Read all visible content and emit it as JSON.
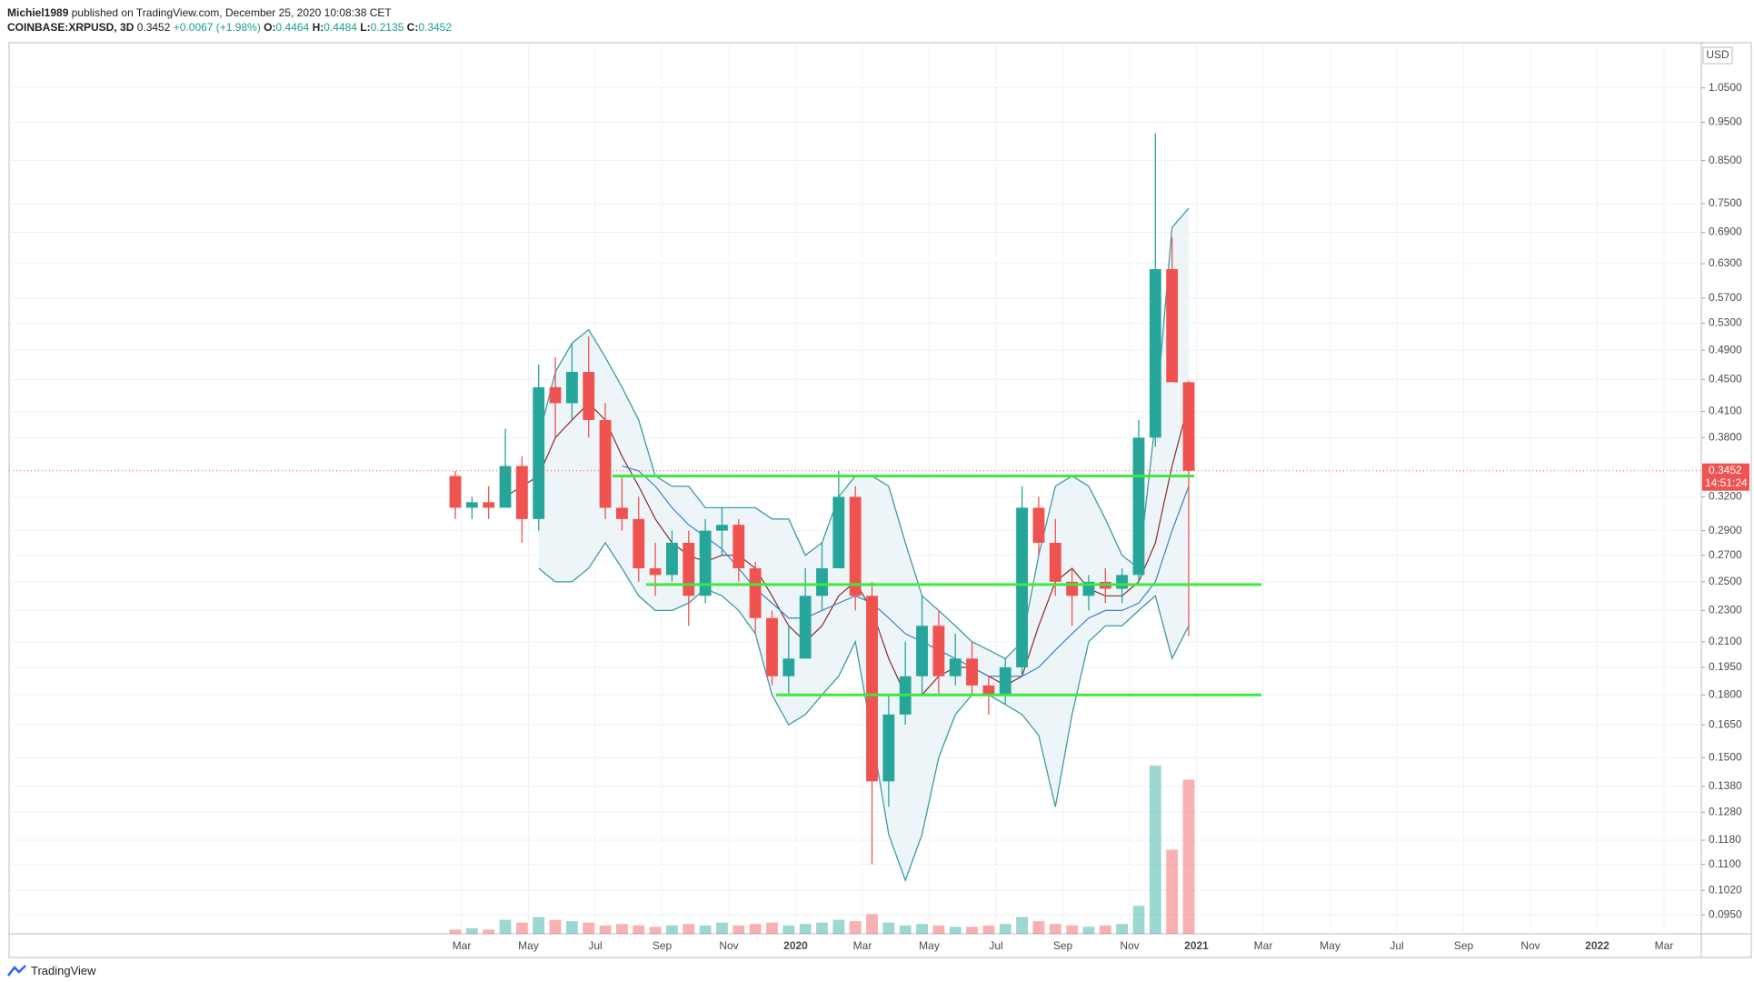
{
  "header": {
    "publisher": "Michiel1989",
    "published": "published on TradingView.com, December 25, 2020 10:08:38 CET",
    "symbol": "COINBASE:XRPUSD, 3D",
    "last": "0.3452",
    "change": "+0.0067 (+1.98%)",
    "ohlc": [
      {
        "label": "O:",
        "value": "0.4464"
      },
      {
        "label": "H:",
        "value": "0.4484"
      },
      {
        "label": "L:",
        "value": "0.2135"
      },
      {
        "label": "C:",
        "value": "0.3452"
      }
    ]
  },
  "logo": "TradingView",
  "chart_data": {
    "type": "candlestick",
    "log_scale": true,
    "grid": true,
    "currency": "USD",
    "ylim": [
      0.0899,
      1.197
    ],
    "yticks": [
      {
        "value": 1.05,
        "label": "1.0500"
      },
      {
        "value": 0.95,
        "label": "0.9500"
      },
      {
        "value": 0.85,
        "label": "0.8500"
      },
      {
        "value": 0.75,
        "label": "0.7500"
      },
      {
        "value": 0.69,
        "label": "0.6900"
      },
      {
        "value": 0.63,
        "label": "0.6300"
      },
      {
        "value": 0.57,
        "label": "0.5700"
      },
      {
        "value": 0.53,
        "label": "0.5300"
      },
      {
        "value": 0.49,
        "label": "0.4900"
      },
      {
        "value": 0.45,
        "label": "0.4500"
      },
      {
        "value": 0.41,
        "label": "0.4100"
      },
      {
        "value": 0.38,
        "label": "0.3800"
      },
      {
        "value": 0.32,
        "label": "0.3200"
      },
      {
        "value": 0.29,
        "label": "0.2900"
      },
      {
        "value": 0.27,
        "label": "0.2700"
      },
      {
        "value": 0.25,
        "label": "0.2500"
      },
      {
        "value": 0.23,
        "label": "0.2300"
      },
      {
        "value": 0.21,
        "label": "0.2100"
      },
      {
        "value": 0.195,
        "label": "0.1950"
      },
      {
        "value": 0.18,
        "label": "0.1800"
      },
      {
        "value": 0.165,
        "label": "0.1650"
      },
      {
        "value": 0.15,
        "label": "0.1500"
      },
      {
        "value": 0.138,
        "label": "0.1380"
      },
      {
        "value": 0.128,
        "label": "0.1280"
      },
      {
        "value": 0.118,
        "label": "0.1180"
      },
      {
        "value": 0.11,
        "label": "0.1100"
      },
      {
        "value": 0.102,
        "label": "0.1020"
      },
      {
        "value": 0.095,
        "label": "0.0950"
      }
    ],
    "xticks": [
      "Mar",
      "May",
      "Jul",
      "Sep",
      "Nov",
      "2020",
      "Mar",
      "May",
      "Jul",
      "Sep",
      "Nov",
      "2021",
      "Mar",
      "May",
      "Jul",
      "Sep",
      "Nov",
      "2022",
      "Mar"
    ],
    "up_color": "#26a69a",
    "down_color": "#ef5350",
    "open": [
      0.34,
      0.31,
      0.315,
      0.31,
      0.35,
      0.3,
      0.44,
      0.42,
      0.46,
      0.4,
      0.31,
      0.3,
      0.26,
      0.255,
      0.28,
      0.24,
      0.29,
      0.295,
      0.26,
      0.225,
      0.19,
      0.2,
      0.24,
      0.26,
      0.32,
      0.24,
      0.14,
      0.17,
      0.19,
      0.22,
      0.19,
      0.2,
      0.185,
      0.18,
      0.195,
      0.31,
      0.28,
      0.25,
      0.24,
      0.25,
      0.245,
      0.255,
      0.38,
      0.62,
      0.4464
    ],
    "high": [
      0.345,
      0.32,
      0.33,
      0.39,
      0.36,
      0.47,
      0.48,
      0.5,
      0.51,
      0.42,
      0.34,
      0.32,
      0.28,
      0.29,
      0.29,
      0.3,
      0.31,
      0.3,
      0.265,
      0.23,
      0.22,
      0.26,
      0.28,
      0.345,
      0.33,
      0.25,
      0.18,
      0.21,
      0.24,
      0.23,
      0.215,
      0.21,
      0.19,
      0.2,
      0.33,
      0.32,
      0.3,
      0.26,
      0.255,
      0.26,
      0.26,
      0.4,
      0.92,
      0.68,
      0.4484
    ],
    "low": [
      0.3,
      0.3,
      0.3,
      0.31,
      0.28,
      0.29,
      0.38,
      0.4,
      0.38,
      0.3,
      0.29,
      0.25,
      0.24,
      0.25,
      0.22,
      0.235,
      0.27,
      0.25,
      0.215,
      0.185,
      0.18,
      0.2,
      0.23,
      0.26,
      0.23,
      0.11,
      0.13,
      0.165,
      0.18,
      0.18,
      0.185,
      0.18,
      0.17,
      0.175,
      0.19,
      0.27,
      0.24,
      0.22,
      0.23,
      0.235,
      0.235,
      0.25,
      0.37,
      0.45,
      0.2135
    ],
    "close": [
      0.31,
      0.315,
      0.31,
      0.35,
      0.3,
      0.44,
      0.42,
      0.46,
      0.4,
      0.31,
      0.3,
      0.26,
      0.255,
      0.28,
      0.24,
      0.29,
      0.295,
      0.26,
      0.225,
      0.19,
      0.2,
      0.24,
      0.26,
      0.32,
      0.24,
      0.14,
      0.17,
      0.19,
      0.22,
      0.19,
      0.2,
      0.185,
      0.18,
      0.195,
      0.31,
      0.28,
      0.25,
      0.24,
      0.25,
      0.245,
      0.255,
      0.38,
      0.62,
      0.4464,
      0.3452
    ],
    "volume": [
      3,
      4,
      3,
      10,
      8,
      12,
      10,
      9,
      8,
      6,
      7,
      6,
      5,
      6,
      7,
      6,
      8,
      6,
      7,
      8,
      6,
      7,
      8,
      10,
      9,
      14,
      8,
      6,
      7,
      6,
      5,
      5,
      6,
      7,
      12,
      9,
      7,
      6,
      5,
      6,
      7,
      20,
      120,
      60,
      110
    ],
    "bands": {
      "color": "#3f9aa0",
      "fill": "#e9f3f6",
      "upper": [
        null,
        null,
        null,
        null,
        null,
        0.38,
        0.46,
        0.5,
        0.52,
        0.48,
        0.44,
        0.4,
        0.34,
        0.33,
        0.33,
        0.31,
        0.31,
        0.31,
        0.31,
        0.3,
        0.3,
        0.27,
        0.28,
        0.32,
        0.34,
        0.34,
        0.33,
        0.28,
        0.24,
        0.23,
        0.22,
        0.21,
        0.205,
        0.2,
        0.21,
        0.27,
        0.33,
        0.34,
        0.33,
        0.3,
        0.27,
        0.26,
        0.4,
        0.7,
        0.74
      ],
      "lower": [
        null,
        null,
        null,
        null,
        null,
        0.26,
        0.25,
        0.25,
        0.26,
        0.28,
        0.26,
        0.24,
        0.23,
        0.23,
        0.235,
        0.245,
        0.24,
        0.23,
        0.215,
        0.18,
        0.165,
        0.17,
        0.18,
        0.19,
        0.21,
        0.16,
        0.12,
        0.105,
        0.12,
        0.15,
        0.17,
        0.18,
        0.18,
        0.175,
        0.17,
        0.16,
        0.13,
        0.17,
        0.21,
        0.22,
        0.22,
        0.23,
        0.24,
        0.2,
        0.22
      ]
    },
    "series": [
      {
        "color": "#8b2a2a",
        "values": [
          null,
          null,
          null,
          0.32,
          0.33,
          0.34,
          0.38,
          0.4,
          0.42,
          0.4,
          0.36,
          0.33,
          0.3,
          0.28,
          0.27,
          0.265,
          0.27,
          0.27,
          0.26,
          0.24,
          0.22,
          0.21,
          0.22,
          0.24,
          0.25,
          0.23,
          0.2,
          0.18,
          0.18,
          0.19,
          0.195,
          0.195,
          0.19,
          0.185,
          0.19,
          0.22,
          0.25,
          0.26,
          0.245,
          0.24,
          0.24,
          0.25,
          0.28,
          0.35,
          0.42
        ]
      },
      {
        "color": "#3b82c4",
        "values": [
          null,
          null,
          null,
          null,
          null,
          null,
          null,
          null,
          null,
          null,
          0.35,
          0.345,
          0.33,
          0.31,
          0.295,
          0.285,
          0.275,
          0.26,
          0.245,
          0.235,
          0.225,
          0.225,
          0.23,
          0.235,
          0.24,
          0.235,
          0.225,
          0.215,
          0.21,
          0.205,
          0.2,
          0.195,
          0.19,
          0.19,
          0.19,
          0.195,
          0.205,
          0.215,
          0.225,
          0.23,
          0.23,
          0.235,
          0.25,
          0.29,
          0.33
        ]
      }
    ],
    "horizontal_lines": {
      "color": "#3ee83e",
      "values": [
        0.34,
        0.248,
        0.18
      ]
    },
    "price_line": {
      "value": 0.3452,
      "label": "0.3452",
      "countdown": "14:51:24",
      "color": "#ef5350"
    }
  }
}
